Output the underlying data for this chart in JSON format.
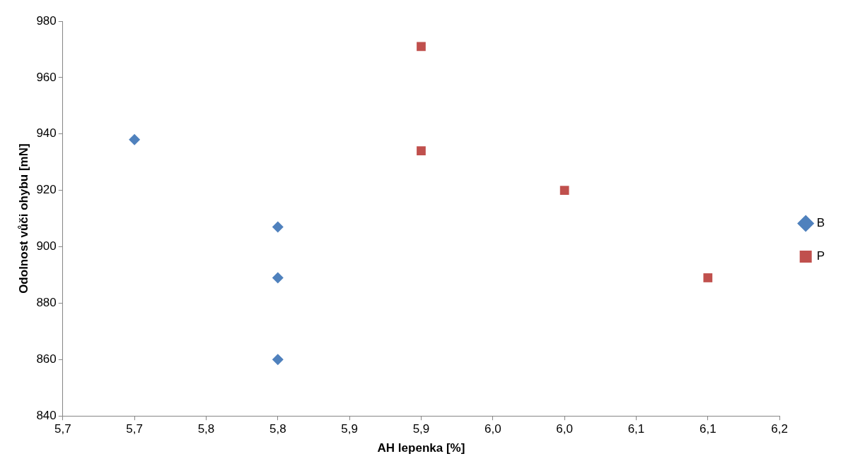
{
  "chart_data": {
    "type": "scatter",
    "xlabel": "AH lepenka [%]",
    "ylabel": "Odolnost vůči ohybu [mN]",
    "series": [
      {
        "name": "B",
        "color": "#4f81bd",
        "marker": "diamond",
        "x": [
          5.7,
          5.8,
          5.8,
          5.8
        ],
        "values": [
          938,
          907,
          889,
          860
        ]
      },
      {
        "name": "P",
        "color": "#c0504d",
        "marker": "square",
        "x": [
          5.9,
          5.9,
          6.0,
          6.1
        ],
        "values": [
          971,
          934,
          920,
          889
        ]
      }
    ],
    "xlim": [
      5.65,
      6.15
    ],
    "xticks": [
      {
        "value": 5.65,
        "label": "5,7"
      },
      {
        "value": 5.7,
        "label": "5,7"
      },
      {
        "value": 5.75,
        "label": "5,8"
      },
      {
        "value": 5.8,
        "label": "5,8"
      },
      {
        "value": 5.85,
        "label": "5,9"
      },
      {
        "value": 5.9,
        "label": "5,9"
      },
      {
        "value": 5.95,
        "label": "6,0"
      },
      {
        "value": 6.0,
        "label": "6,0"
      },
      {
        "value": 6.05,
        "label": "6,1"
      },
      {
        "value": 6.1,
        "label": "6,1"
      },
      {
        "value": 6.15,
        "label": "6,2"
      }
    ],
    "ylim": [
      840,
      980
    ],
    "yticks": [
      840,
      860,
      880,
      900,
      920,
      940,
      960,
      980
    ],
    "grid": false,
    "legend": "right"
  }
}
